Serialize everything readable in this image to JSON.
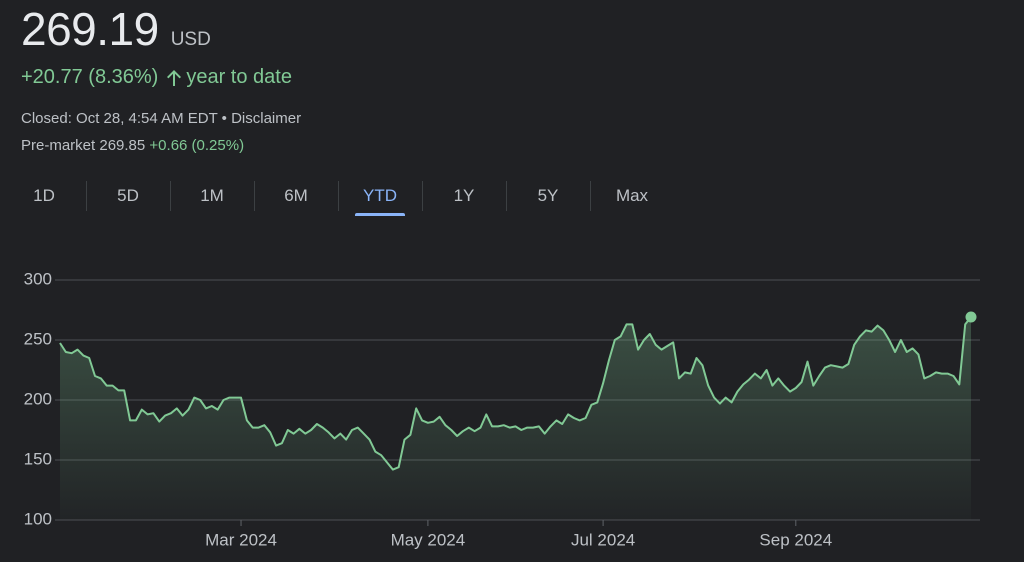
{
  "quote": {
    "price": "269.19",
    "currency": "USD",
    "change": "+20.77 (8.36%)",
    "period": "year to date",
    "closed": "Closed: Oct 28, 4:54 AM EDT • Disclaimer",
    "premarket_label": "Pre-market",
    "premarket_price": "269.85",
    "premarket_change": "+0.66 (0.25%)"
  },
  "range_tabs": {
    "items": [
      "1D",
      "5D",
      "1M",
      "6M",
      "YTD",
      "1Y",
      "5Y",
      "Max"
    ],
    "active": 4
  },
  "chart_data": {
    "type": "line",
    "color": "#81c995",
    "grid": true,
    "ylim": [
      100,
      300
    ],
    "yticks": [
      100,
      150,
      200,
      250,
      300
    ],
    "categories": [
      null,
      null,
      null,
      null,
      null,
      null,
      null,
      null,
      null,
      null,
      null,
      null,
      null,
      null,
      null,
      null,
      null,
      null,
      null,
      null,
      null,
      null,
      null,
      null,
      null,
      null,
      null,
      null,
      null,
      null,
      null,
      "Mar 2024",
      null,
      null,
      null,
      null,
      null,
      null,
      null,
      null,
      null,
      null,
      null,
      null,
      null,
      null,
      null,
      null,
      null,
      null,
      null,
      null,
      null,
      null,
      null,
      null,
      null,
      null,
      null,
      null,
      null,
      null,
      null,
      "May 2024",
      null,
      null,
      null,
      null,
      null,
      null,
      null,
      null,
      null,
      null,
      null,
      null,
      null,
      null,
      null,
      null,
      null,
      null,
      null,
      null,
      null,
      null,
      null,
      null,
      null,
      null,
      null,
      null,
      null,
      "Jul 2024",
      null,
      null,
      null,
      null,
      null,
      null,
      null,
      null,
      null,
      null,
      null,
      null,
      null,
      null,
      null,
      null,
      null,
      null,
      null,
      null,
      null,
      null,
      null,
      null,
      null,
      null,
      null,
      null,
      null,
      null,
      null,
      null,
      "Sep 2024",
      null,
      null,
      null,
      null,
      null,
      null,
      null,
      null,
      null,
      null,
      null,
      null,
      null,
      null,
      null,
      null,
      null,
      null,
      null,
      null,
      null,
      null,
      null,
      null,
      null,
      null,
      null,
      null,
      null,
      null
    ],
    "values": [
      247.5,
      240,
      239,
      242,
      237,
      235,
      220,
      218,
      212,
      212,
      208,
      208,
      183,
      183,
      192,
      188,
      189,
      182,
      187,
      189,
      193,
      187,
      192,
      202,
      200,
      193,
      195,
      192,
      200,
      202,
      202,
      202,
      183,
      177,
      177,
      179,
      173,
      162,
      164,
      175,
      172,
      176,
      172,
      175,
      180,
      177,
      173,
      168,
      172,
      167,
      175,
      177,
      172,
      167,
      157,
      154,
      148,
      142,
      144,
      167,
      171,
      193,
      183,
      181,
      182,
      186,
      179,
      175,
      170,
      174,
      177,
      174,
      177,
      188,
      178,
      178,
      179,
      177,
      178,
      175,
      177,
      177,
      178,
      172,
      178,
      183,
      180,
      188,
      185,
      183,
      185,
      196,
      198,
      214,
      233,
      250,
      253,
      263,
      263,
      242,
      250,
      255,
      246,
      242,
      245,
      248,
      218,
      223,
      222,
      235,
      229,
      212,
      202,
      197,
      202,
      198,
      207,
      213,
      217,
      222,
      218,
      225,
      212,
      218,
      212,
      207,
      210,
      215,
      232,
      212,
      220,
      227,
      229,
      228,
      227,
      230,
      246,
      253,
      258,
      257,
      262,
      258,
      250,
      240,
      250,
      240,
      243,
      238,
      218,
      220,
      223,
      222,
      222,
      220,
      213,
      263,
      269.19
    ]
  }
}
